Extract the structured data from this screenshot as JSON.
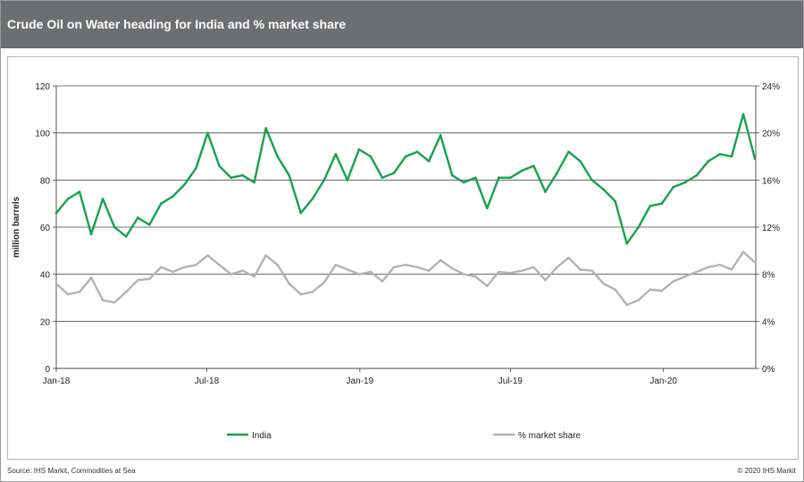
{
  "header": {
    "title": "Crude Oil on Water heading for India and %  market share"
  },
  "footer": {
    "source": "Source:  IHS Markit, Commodities  at Sea",
    "copyright": "© 2020  IHS Markit"
  },
  "chart_data": {
    "type": "line",
    "title": "Crude Oil on Water heading for India and %  market share",
    "ylabel": "million barrels",
    "ylim": [
      0,
      120
    ],
    "yticks": [
      "0",
      "20",
      "40",
      "60",
      "80",
      "100",
      "120"
    ],
    "y2lim": [
      0,
      24
    ],
    "y2ticks": [
      "0%",
      "4%",
      "8%",
      "12%",
      "16%",
      "20%",
      "24%"
    ],
    "xlim": [
      "2018-01-01",
      "2020-04-21"
    ],
    "xtick_dates": [
      "2018-01-01",
      "2018-07-01",
      "2019-01-01",
      "2019-07-01",
      "2020-01-01"
    ],
    "xtick_labels": [
      "Jan-18",
      "Jul-18",
      "Jan-19",
      "Jul-19",
      "Jan-20"
    ],
    "grid": "horizontal",
    "legend_position": "bottom",
    "x": [
      "2018-01-01",
      "2018-01-15",
      "2018-01-29",
      "2018-02-12",
      "2018-02-26",
      "2018-03-12",
      "2018-03-26",
      "2018-04-09",
      "2018-04-23",
      "2018-05-07",
      "2018-05-21",
      "2018-06-04",
      "2018-06-18",
      "2018-07-02",
      "2018-07-16",
      "2018-07-30",
      "2018-08-13",
      "2018-08-27",
      "2018-09-10",
      "2018-09-24",
      "2018-10-08",
      "2018-10-22",
      "2018-11-05",
      "2018-11-19",
      "2018-12-03",
      "2018-12-17",
      "2018-12-31",
      "2019-01-14",
      "2019-01-28",
      "2019-02-11",
      "2019-02-25",
      "2019-03-11",
      "2019-03-25",
      "2019-04-08",
      "2019-04-22",
      "2019-05-06",
      "2019-05-20",
      "2019-06-03",
      "2019-06-17",
      "2019-07-01",
      "2019-07-15",
      "2019-07-29",
      "2019-08-12",
      "2019-08-26",
      "2019-09-09",
      "2019-09-23",
      "2019-10-07",
      "2019-10-21",
      "2019-11-04",
      "2019-11-18",
      "2019-12-02",
      "2019-12-16",
      "2019-12-30",
      "2020-01-13",
      "2020-01-27",
      "2020-02-10",
      "2020-02-24",
      "2020-03-09",
      "2020-03-23",
      "2020-04-06",
      "2020-04-20"
    ],
    "series": [
      {
        "name": "India",
        "axis": "left",
        "color": "#16a34a",
        "values": [
          66,
          72,
          75,
          57,
          72,
          60,
          56,
          64,
          61,
          70,
          73,
          78,
          85,
          100,
          86,
          81,
          82,
          79,
          102,
          90,
          82,
          66,
          72,
          80,
          91,
          80,
          93,
          90,
          81,
          83,
          90,
          92,
          88,
          99,
          82,
          79,
          81,
          68,
          81,
          81,
          84,
          86,
          75,
          83,
          92,
          88,
          80,
          76,
          71,
          53,
          60,
          69,
          70,
          77,
          79,
          82,
          88,
          91,
          90,
          108,
          89
        ]
      },
      {
        "name": "% market share",
        "axis": "right",
        "color": "#b3b3b3",
        "format": "percent",
        "values": [
          7.2,
          6.3,
          6.5,
          7.7,
          5.8,
          5.6,
          6.5,
          7.5,
          7.6,
          8.6,
          8.2,
          8.6,
          8.8,
          9.6,
          8.8,
          8.0,
          8.3,
          7.8,
          9.6,
          8.8,
          7.2,
          6.3,
          6.5,
          7.3,
          8.8,
          8.4,
          8.0,
          8.2,
          7.4,
          8.6,
          8.8,
          8.6,
          8.3,
          9.2,
          8.5,
          8.0,
          7.8,
          7.0,
          8.2,
          8.1,
          8.3,
          8.6,
          7.5,
          8.6,
          9.4,
          8.4,
          8.3,
          7.2,
          6.7,
          5.4,
          5.8,
          6.7,
          6.6,
          7.4,
          7.8,
          8.2,
          8.6,
          8.8,
          8.4,
          9.9,
          9.0
        ]
      }
    ]
  }
}
